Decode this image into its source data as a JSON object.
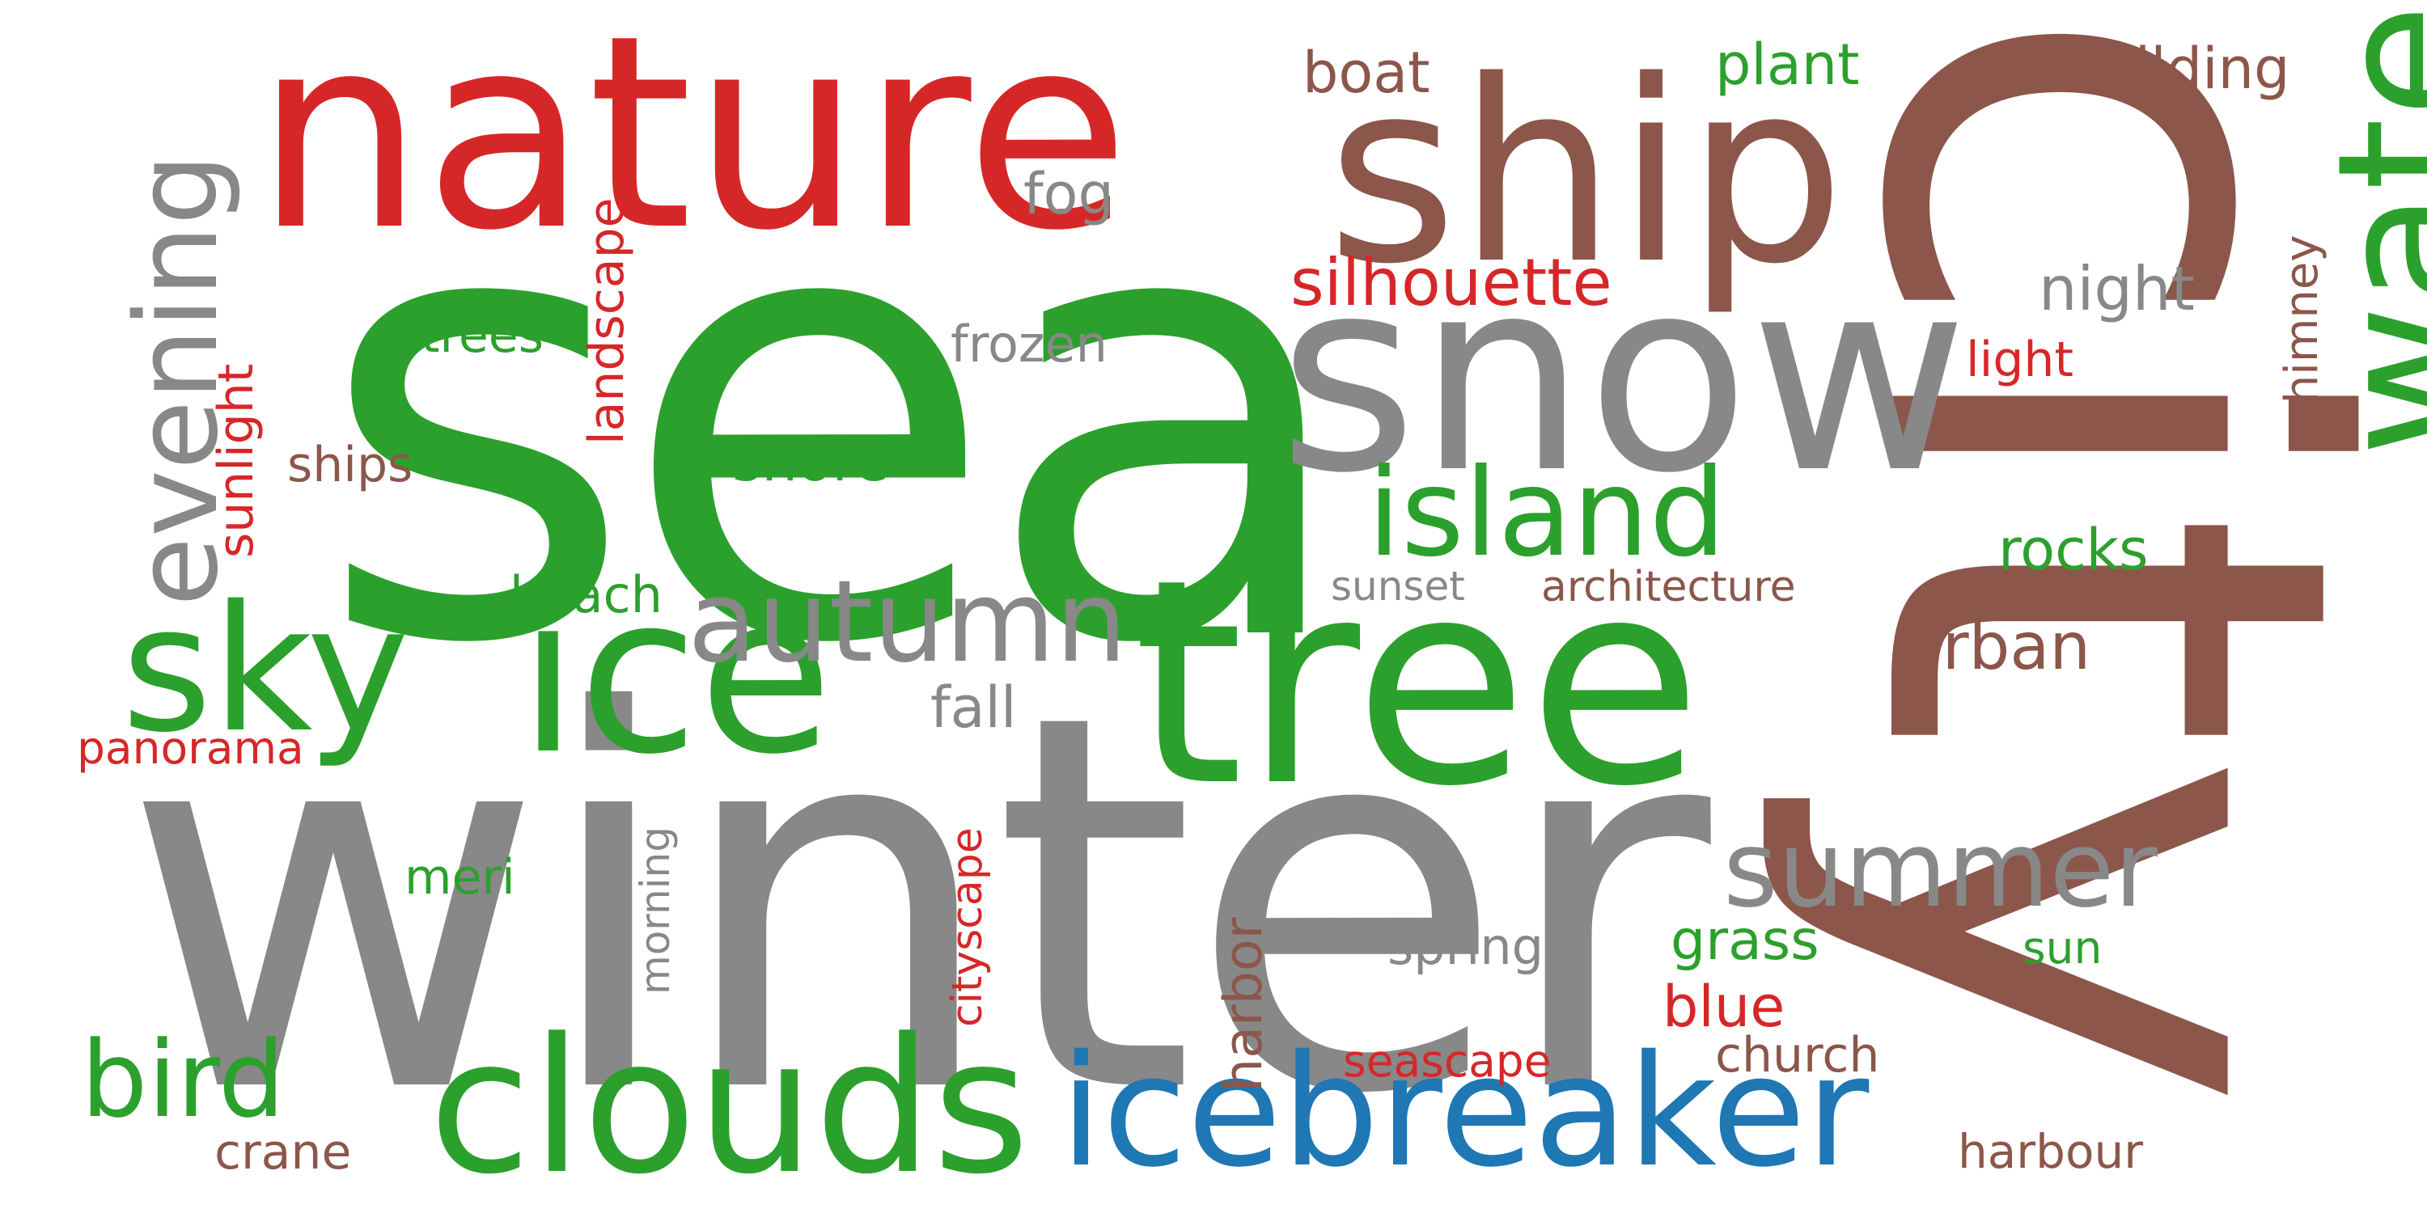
{
  "word_cloud": {
    "words": [
      {
        "id": "sea",
        "text": "sea",
        "color": "#2ca02c"
      },
      {
        "id": "winter",
        "text": "winter",
        "color": "#888888"
      },
      {
        "id": "city",
        "text": "city",
        "color": "#8c564b"
      },
      {
        "id": "nature",
        "text": "nature",
        "color": "#d62728"
      },
      {
        "id": "ship",
        "text": "ship",
        "color": "#8c564b"
      },
      {
        "id": "snow",
        "text": "snow",
        "color": "#888888"
      },
      {
        "id": "tree",
        "text": "tree",
        "color": "#2ca02c"
      },
      {
        "id": "water",
        "text": "water",
        "color": "#2ca02c"
      },
      {
        "id": "ice",
        "text": "ice",
        "color": "#2ca02c"
      },
      {
        "id": "clouds",
        "text": "clouds",
        "color": "#2ca02c"
      },
      {
        "id": "icebreaker",
        "text": "icebreaker",
        "color": "#1f77b4"
      },
      {
        "id": "sky",
        "text": "sky",
        "color": "#2ca02c"
      },
      {
        "id": "evening",
        "text": "evening",
        "color": "#888888"
      },
      {
        "id": "island",
        "text": "island",
        "color": "#2ca02c"
      },
      {
        "id": "autumn",
        "text": "autumn",
        "color": "#888888"
      },
      {
        "id": "summer",
        "text": "summer",
        "color": "#888888"
      },
      {
        "id": "bird",
        "text": "bird",
        "color": "#2ca02c"
      },
      {
        "id": "silhouette",
        "text": "silhouette",
        "color": "#d62728"
      },
      {
        "id": "landscape",
        "text": "landscape",
        "color": "#d62728"
      },
      {
        "id": "sunlight",
        "text": "sunlight",
        "color": "#d62728"
      },
      {
        "id": "urban",
        "text": "urban",
        "color": "#8c564b"
      },
      {
        "id": "night",
        "text": "night",
        "color": "#888888"
      },
      {
        "id": "building",
        "text": "building",
        "color": "#8c564b"
      },
      {
        "id": "plant",
        "text": "plant",
        "color": "#2ca02c"
      },
      {
        "id": "boat",
        "text": "boat",
        "color": "#8c564b"
      },
      {
        "id": "fog",
        "text": "fog",
        "color": "#888888"
      },
      {
        "id": "rocks",
        "text": "rocks",
        "color": "#2ca02c"
      },
      {
        "id": "chimney",
        "text": "chimney",
        "color": "#8c564b"
      },
      {
        "id": "light",
        "text": "light",
        "color": "#d62728"
      },
      {
        "id": "frozen",
        "text": "frozen",
        "color": "#888888"
      },
      {
        "id": "trees",
        "text": "trees",
        "color": "#2ca02c"
      },
      {
        "id": "shore",
        "text": "shore",
        "color": "#2ca02c"
      },
      {
        "id": "ships",
        "text": "ships",
        "color": "#8c564b"
      },
      {
        "id": "beach",
        "text": "beach",
        "color": "#2ca02c"
      },
      {
        "id": "sunset",
        "text": "sunset",
        "color": "#888888"
      },
      {
        "id": "architecture",
        "text": "architecture",
        "color": "#8c564b"
      },
      {
        "id": "fall",
        "text": "fall",
        "color": "#888888"
      },
      {
        "id": "panorama",
        "text": "panorama",
        "color": "#d62728"
      },
      {
        "id": "morning",
        "text": "morning",
        "color": "#888888"
      },
      {
        "id": "cityscape",
        "text": "cityscape",
        "color": "#d62728"
      },
      {
        "id": "meri",
        "text": "meri",
        "color": "#2ca02c"
      },
      {
        "id": "harbor",
        "text": "harbor",
        "color": "#8c564b"
      },
      {
        "id": "spring",
        "text": "spring",
        "color": "#888888"
      },
      {
        "id": "grass",
        "text": "grass",
        "color": "#2ca02c"
      },
      {
        "id": "sun",
        "text": "sun",
        "color": "#2ca02c"
      },
      {
        "id": "blue",
        "text": "blue",
        "color": "#d62728"
      },
      {
        "id": "crane",
        "text": "crane",
        "color": "#8c564b"
      },
      {
        "id": "seascape",
        "text": "seascape",
        "color": "#d62728"
      },
      {
        "id": "church",
        "text": "church",
        "color": "#8c564b"
      },
      {
        "id": "harbour",
        "text": "harbour",
        "color": "#8c564b"
      }
    ]
  }
}
